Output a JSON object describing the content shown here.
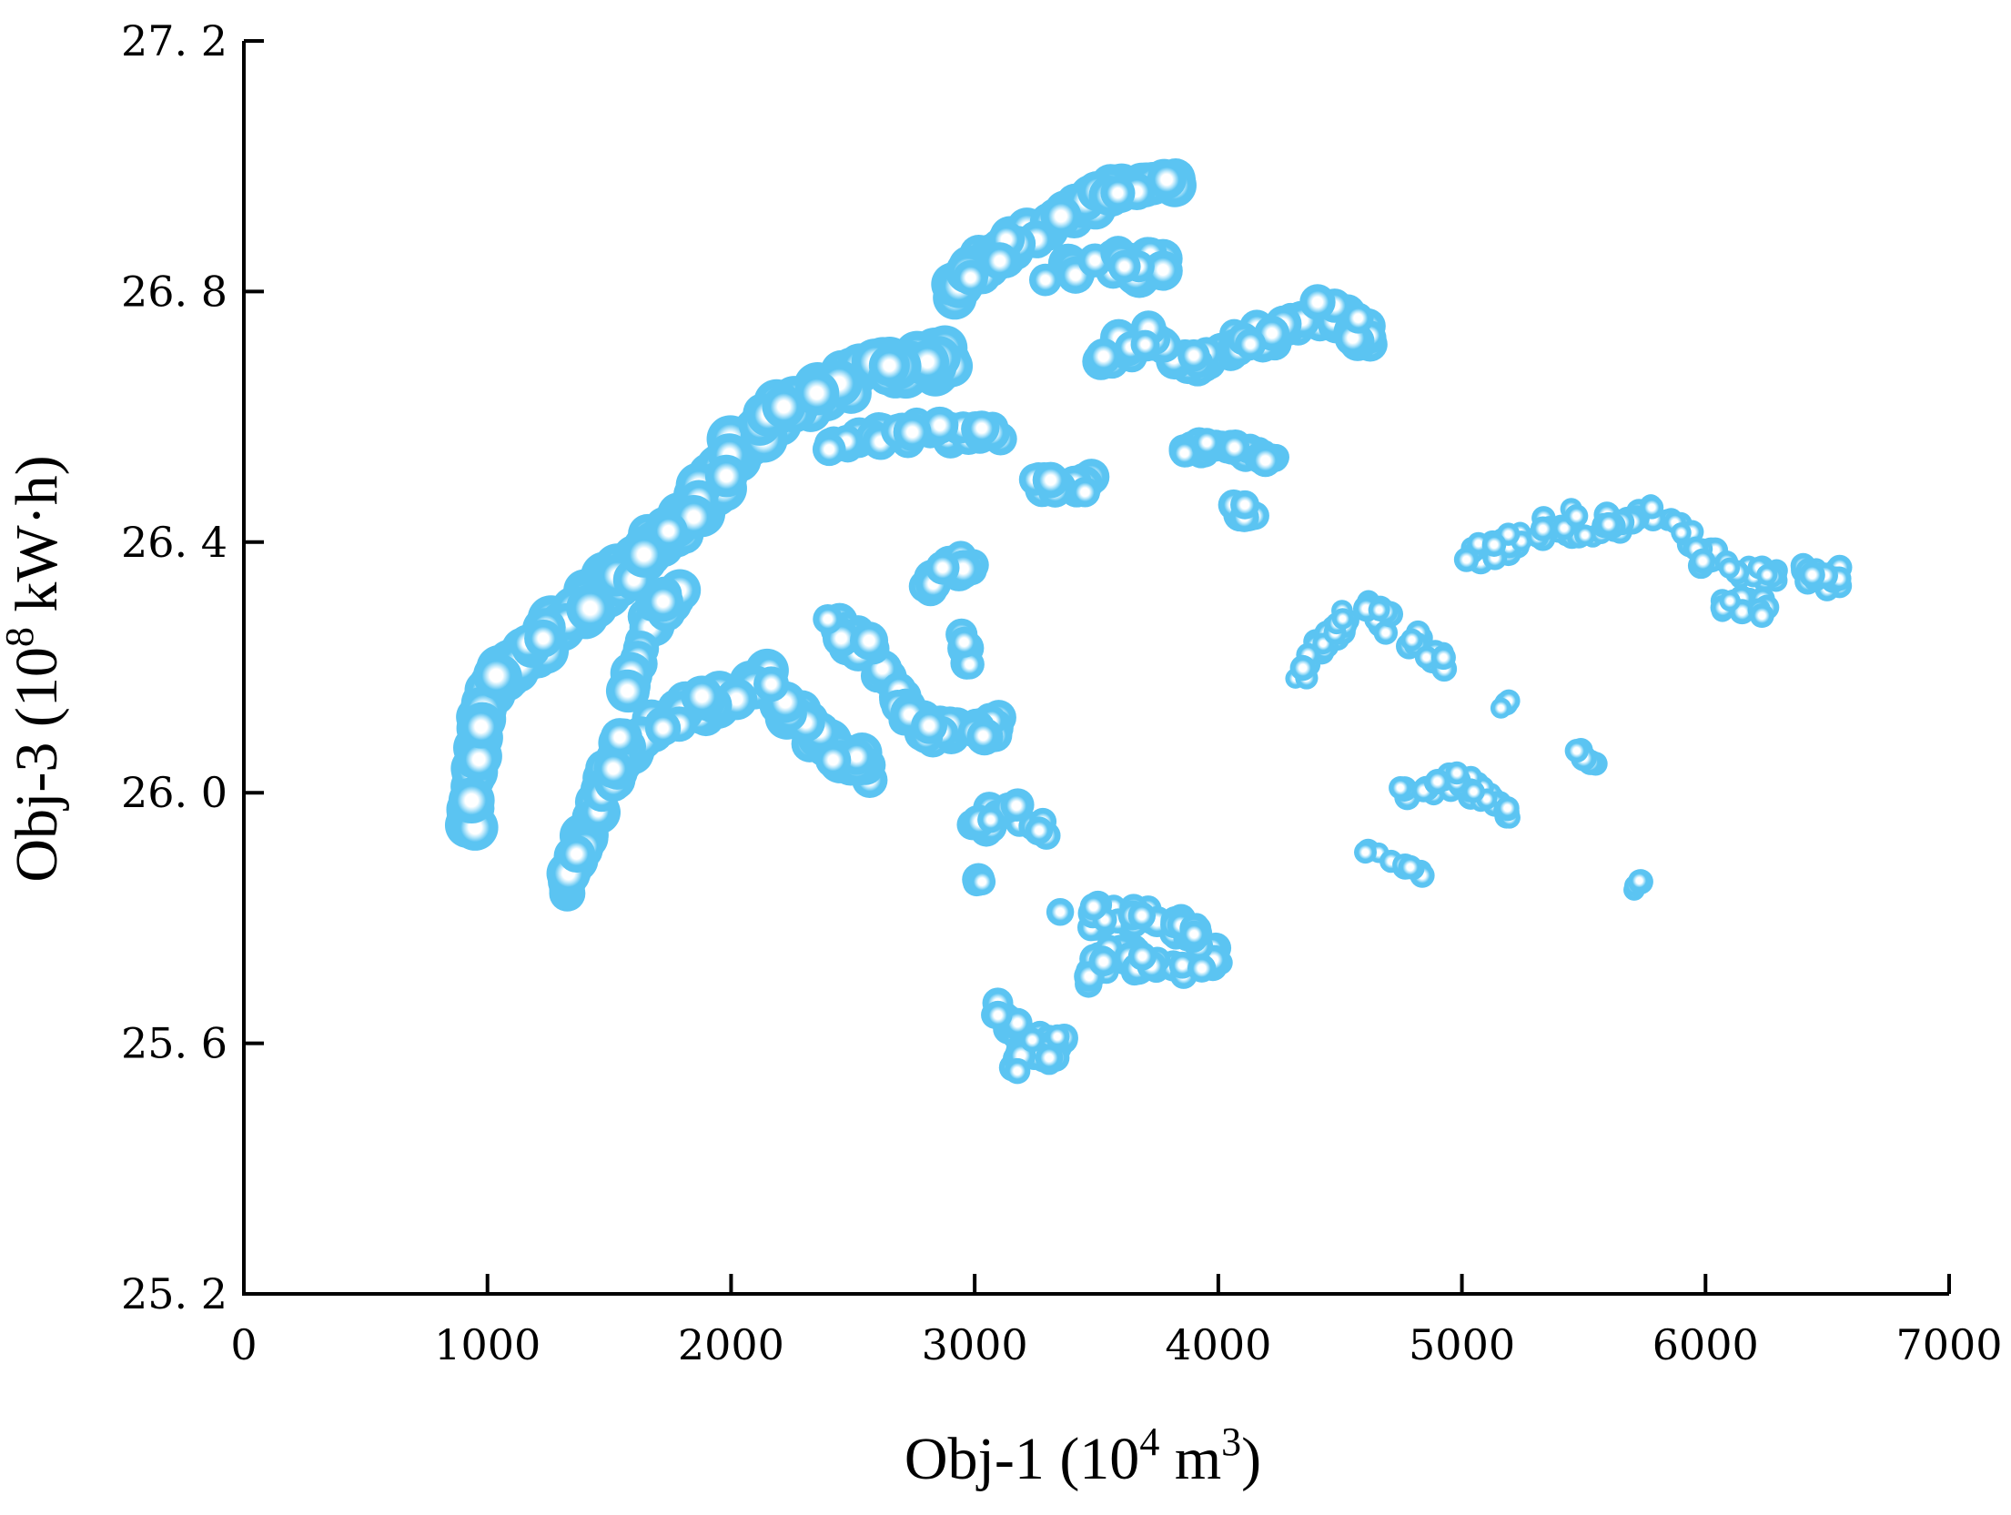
{
  "chart_data": {
    "type": "scatter",
    "xlabel": {
      "main": "Obj-1 (10",
      "sup": "4",
      "after": " m",
      "sup2": "3",
      "close": ")"
    },
    "ylabel": {
      "main": "Obj-3 (10",
      "sup": "8",
      "after": " kW·h)"
    },
    "xlim": [
      0,
      7000
    ],
    "ylim": [
      25.2,
      27.2
    ],
    "xticks": [
      0,
      1000,
      2000,
      3000,
      4000,
      5000,
      6000,
      7000
    ],
    "xtick_labels": [
      "0",
      "1000",
      "2000",
      "3000",
      "4000",
      "5000",
      "6000",
      "7000"
    ],
    "yticks": [
      25.2,
      25.6,
      26.0,
      26.4,
      26.8,
      27.2
    ],
    "ytick_labels": [
      "25. 2",
      "25. 6",
      "26. 0",
      "26. 4",
      "26. 8",
      "27. 2"
    ],
    "grid": false,
    "legend": "none",
    "marker_color": "#5bc4f2",
    "marker_highlight": "#ffffff",
    "clusters": [
      {
        "path": [
          [
            930,
            25.94
          ],
          [
            950,
            26.05
          ],
          [
            1000,
            26.15
          ],
          [
            1080,
            26.2
          ],
          [
            1180,
            26.23
          ],
          [
            1300,
            26.27
          ],
          [
            1420,
            26.3
          ],
          [
            1560,
            26.35
          ],
          [
            1700,
            26.4
          ],
          [
            1850,
            26.46
          ],
          [
            1950,
            26.5
          ],
          [
            2050,
            26.56
          ],
          [
            2200,
            26.61
          ],
          [
            2400,
            26.64
          ],
          [
            2600,
            26.67
          ],
          [
            2800,
            26.69
          ],
          [
            2900,
            26.68
          ]
        ],
        "spread_x": 30,
        "spread_y": 0.035,
        "count": 260,
        "size": 1.0
      },
      {
        "path": [
          [
            1320,
            25.84
          ],
          [
            1400,
            25.93
          ],
          [
            1500,
            26.03
          ],
          [
            1620,
            26.08
          ],
          [
            1780,
            26.12
          ],
          [
            1950,
            26.15
          ],
          [
            2150,
            26.18
          ],
          [
            2250,
            26.12
          ],
          [
            2400,
            26.07
          ],
          [
            2600,
            26.03
          ]
        ],
        "spread_x": 30,
        "spread_y": 0.03,
        "count": 130,
        "size": 0.92
      },
      {
        "path": [
          [
            1500,
            26.0
          ],
          [
            1600,
            26.2
          ],
          [
            1700,
            26.3
          ],
          [
            1800,
            26.33
          ]
        ],
        "spread_x": 25,
        "spread_y": 0.03,
        "count": 30,
        "size": 0.9
      },
      {
        "path": [
          [
            2400,
            26.27
          ],
          [
            2550,
            26.24
          ],
          [
            2700,
            26.15
          ],
          [
            2800,
            26.1
          ],
          [
            2900,
            26.1
          ],
          [
            3100,
            26.1
          ]
        ],
        "spread_x": 35,
        "spread_y": 0.03,
        "count": 70,
        "size": 0.8
      },
      {
        "path": [
          [
            2400,
            26.55
          ],
          [
            2600,
            26.57
          ],
          [
            2800,
            26.57
          ],
          [
            3000,
            26.58
          ],
          [
            3100,
            26.57
          ]
        ],
        "spread_x": 25,
        "spread_y": 0.03,
        "count": 40,
        "size": 0.8
      },
      {
        "path": [
          [
            2800,
            26.33
          ],
          [
            2900,
            26.37
          ],
          [
            3000,
            26.35
          ]
        ],
        "spread_x": 25,
        "spread_y": 0.025,
        "count": 18,
        "size": 0.8
      },
      {
        "path": [
          [
            2900,
            26.8
          ],
          [
            3050,
            26.85
          ],
          [
            3250,
            26.89
          ],
          [
            3450,
            26.94
          ],
          [
            3650,
            26.97
          ],
          [
            3850,
            26.98
          ]
        ],
        "spread_x": 30,
        "spread_y": 0.03,
        "count": 90,
        "size": 0.92
      },
      {
        "path": [
          [
            3300,
            26.82
          ],
          [
            3500,
            26.85
          ],
          [
            3650,
            26.85
          ],
          [
            3800,
            26.84
          ]
        ],
        "spread_x": 30,
        "spread_y": 0.03,
        "count": 30,
        "size": 0.85
      },
      {
        "path": [
          [
            3500,
            26.7
          ],
          [
            3700,
            26.72
          ],
          [
            3900,
            26.68
          ],
          [
            4100,
            26.72
          ],
          [
            4300,
            26.75
          ],
          [
            4500,
            26.76
          ],
          [
            4650,
            26.72
          ]
        ],
        "spread_x": 30,
        "spread_y": 0.03,
        "count": 90,
        "size": 0.78
      },
      {
        "path": [
          [
            3850,
            26.55
          ],
          [
            4050,
            26.55
          ],
          [
            4250,
            26.53
          ]
        ],
        "spread_x": 30,
        "spread_y": 0.02,
        "count": 35,
        "size": 0.7
      },
      {
        "path": [
          [
            4050,
            26.45
          ],
          [
            4150,
            26.44
          ]
        ],
        "spread_x": 20,
        "spread_y": 0.02,
        "count": 8,
        "size": 0.7
      },
      {
        "path": [
          [
            3250,
            26.5
          ],
          [
            3400,
            26.48
          ],
          [
            3500,
            26.5
          ]
        ],
        "spread_x": 25,
        "spread_y": 0.02,
        "count": 15,
        "size": 0.8
      },
      {
        "path": [
          [
            2950,
            26.25
          ],
          [
            3000,
            26.2
          ]
        ],
        "spread_x": 15,
        "spread_y": 0.02,
        "count": 6,
        "size": 0.8
      },
      {
        "path": [
          [
            3000,
            25.95
          ],
          [
            3150,
            25.97
          ],
          [
            3300,
            25.94
          ]
        ],
        "spread_x": 30,
        "spread_y": 0.03,
        "count": 22,
        "size": 0.7
      },
      {
        "path": [
          [
            3000,
            25.86
          ],
          [
            3050,
            25.86
          ]
        ],
        "spread_x": 15,
        "spread_y": 0.01,
        "count": 5,
        "size": 0.7
      },
      {
        "path": [
          [
            3350,
            25.8
          ],
          [
            3550,
            25.8
          ],
          [
            3750,
            25.8
          ],
          [
            3900,
            25.78
          ],
          [
            4000,
            25.74
          ],
          [
            3800,
            25.72
          ],
          [
            3600,
            25.74
          ],
          [
            3450,
            25.7
          ]
        ],
        "spread_x": 40,
        "spread_y": 0.035,
        "count": 80,
        "size": 0.65
      },
      {
        "path": [
          [
            3050,
            25.66
          ],
          [
            3150,
            25.62
          ],
          [
            3250,
            25.58
          ],
          [
            3350,
            25.6
          ],
          [
            3100,
            25.56
          ]
        ],
        "spread_x": 40,
        "spread_y": 0.035,
        "count": 45,
        "size": 0.65
      },
      {
        "path": [
          [
            4300,
            26.18
          ],
          [
            4450,
            26.25
          ],
          [
            4600,
            26.3
          ],
          [
            4800,
            26.25
          ],
          [
            4950,
            26.2
          ]
        ],
        "spread_x": 40,
        "spread_y": 0.03,
        "count": 50,
        "size": 0.55
      },
      {
        "path": [
          [
            5000,
            26.38
          ],
          [
            5200,
            26.4
          ],
          [
            5400,
            26.43
          ],
          [
            5600,
            26.42
          ],
          [
            5800,
            26.45
          ],
          [
            6000,
            26.38
          ],
          [
            6200,
            26.35
          ],
          [
            6400,
            26.35
          ],
          [
            6550,
            26.35
          ]
        ],
        "spread_x": 40,
        "spread_y": 0.03,
        "count": 110,
        "size": 0.55
      },
      {
        "path": [
          [
            6050,
            26.3
          ],
          [
            6250,
            26.3
          ]
        ],
        "spread_x": 40,
        "spread_y": 0.02,
        "count": 15,
        "size": 0.55
      },
      {
        "path": [
          [
            4750,
            25.99
          ],
          [
            4950,
            26.02
          ],
          [
            5100,
            26.0
          ],
          [
            5200,
            25.96
          ]
        ],
        "spread_x": 35,
        "spread_y": 0.025,
        "count": 45,
        "size": 0.55
      },
      {
        "path": [
          [
            4600,
            25.91
          ],
          [
            4750,
            25.89
          ],
          [
            4850,
            25.87
          ]
        ],
        "spread_x": 25,
        "spread_y": 0.015,
        "count": 12,
        "size": 0.55
      },
      {
        "path": [
          [
            5450,
            26.07
          ],
          [
            5550,
            26.05
          ]
        ],
        "spread_x": 20,
        "spread_y": 0.015,
        "count": 7,
        "size": 0.55
      },
      {
        "path": [
          [
            5100,
            26.13
          ],
          [
            5250,
            26.15
          ]
        ],
        "spread_x": 10,
        "spread_y": 0.01,
        "count": 3,
        "size": 0.55
      },
      {
        "path": [
          [
            5700,
            25.85
          ],
          [
            5750,
            25.86
          ]
        ],
        "spread_x": 10,
        "spread_y": 0.01,
        "count": 4,
        "size": 0.55
      }
    ]
  }
}
